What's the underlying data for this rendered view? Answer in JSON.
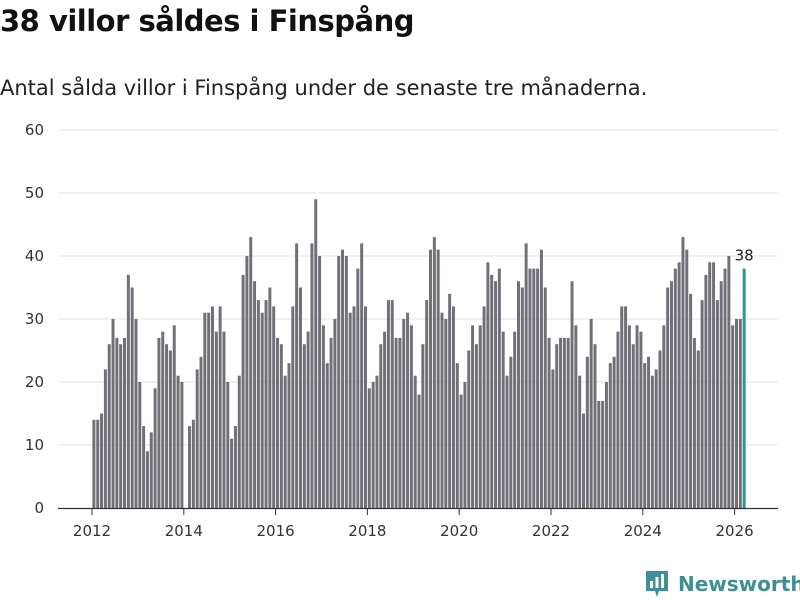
{
  "header": {
    "title": "38 villor såldes i Finspång",
    "subtitle": "Antal sålda villor i Finspång under de senaste tre månaderna."
  },
  "brand": {
    "name": "Newsworthy"
  },
  "colors": {
    "bar": "#717077",
    "highlight": "#1e9c91",
    "grid": "#e3e3e3",
    "axis": "#333333",
    "brand": "#3f8f94"
  },
  "chart_data": {
    "type": "bar",
    "title": "38 villor såldes i Finspång",
    "subtitle": "Antal sålda villor i Finspång under de senaste tre månaderna.",
    "xlabel": "",
    "ylabel": "",
    "ylim": [
      0,
      60
    ],
    "yticks": [
      0,
      10,
      20,
      30,
      40,
      50,
      60
    ],
    "xticks": [
      2012,
      2014,
      2016,
      2018,
      2020,
      2022,
      2024,
      2026
    ],
    "grid": true,
    "start": {
      "year": 2012,
      "month": 1
    },
    "highlight_last": true,
    "highlight_label": "38",
    "values": [
      14,
      14,
      15,
      22,
      26,
      30,
      27,
      26,
      27,
      37,
      35,
      30,
      20,
      13,
      9,
      12,
      19,
      27,
      28,
      26,
      25,
      29,
      21,
      20,
      0,
      13,
      14,
      22,
      24,
      31,
      31,
      32,
      28,
      32,
      28,
      20,
      11,
      13,
      21,
      37,
      40,
      43,
      36,
      33,
      31,
      33,
      35,
      32,
      27,
      26,
      21,
      23,
      32,
      42,
      35,
      26,
      28,
      42,
      49,
      40,
      29,
      23,
      27,
      30,
      40,
      41,
      40,
      31,
      32,
      38,
      42,
      32,
      19,
      20,
      21,
      26,
      28,
      33,
      33,
      27,
      27,
      30,
      31,
      29,
      21,
      18,
      26,
      33,
      41,
      43,
      41,
      31,
      30,
      34,
      32,
      23,
      18,
      20,
      25,
      29,
      26,
      29,
      32,
      39,
      37,
      36,
      38,
      28,
      21,
      24,
      28,
      36,
      35,
      42,
      38,
      38,
      38,
      41,
      35,
      27,
      22,
      26,
      27,
      27,
      27,
      36,
      29,
      21,
      15,
      24,
      30,
      26,
      17,
      17,
      20,
      23,
      24,
      28,
      32,
      32,
      29,
      26,
      29,
      28,
      23,
      24,
      21,
      22,
      25,
      29,
      35,
      36,
      38,
      39,
      43,
      41,
      34,
      27,
      25,
      33,
      37,
      39,
      39,
      33,
      36,
      38,
      40,
      29,
      30,
      30,
      38
    ]
  }
}
